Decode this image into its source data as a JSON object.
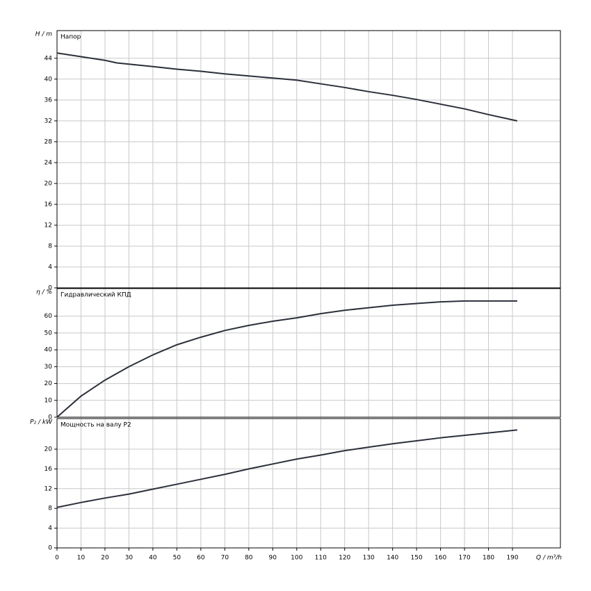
{
  "chart_data": [
    {
      "type": "line",
      "title": "Напор",
      "y_label": "H / m",
      "x": [
        0,
        10,
        20,
        25,
        40,
        50,
        60,
        70,
        80,
        90,
        100,
        110,
        120,
        130,
        140,
        150,
        160,
        170,
        180,
        192
      ],
      "values": [
        45,
        44.3,
        43.6,
        43.1,
        42.4,
        41.9,
        41.5,
        41.0,
        40.6,
        40.2,
        39.8,
        39.1,
        38.4,
        37.6,
        36.9,
        36.1,
        35.2,
        34.3,
        33.2,
        32
      ],
      "color": "#2b2f3a",
      "xlim": [
        0,
        210
      ],
      "ylim": [
        0,
        49.3
      ],
      "yticks": [
        0,
        4,
        8,
        12,
        16,
        20,
        24,
        28,
        32,
        36,
        40,
        44
      ],
      "grid": true
    },
    {
      "type": "line",
      "title": "Гидравлический КПД",
      "y_label": "η / %",
      "x": [
        0,
        10,
        20,
        30,
        40,
        50,
        60,
        70,
        80,
        90,
        100,
        110,
        120,
        130,
        140,
        150,
        160,
        170,
        180,
        192
      ],
      "values": [
        0,
        12.5,
        22,
        30,
        37,
        43,
        47.5,
        51.5,
        54.5,
        57,
        59,
        61.5,
        63.5,
        65,
        66.5,
        67.5,
        68.5,
        69,
        69,
        69
      ],
      "color": "#2b2f3a",
      "xlim": [
        0,
        210
      ],
      "ylim": [
        0,
        76.4
      ],
      "yticks": [
        0,
        10,
        20,
        30,
        40,
        50,
        60
      ],
      "grid": true
    },
    {
      "type": "line",
      "title": "Мощность на валу P2",
      "y_label": "P₂ / kW",
      "x_label": "Q / m³/h",
      "x": [
        0,
        10,
        20,
        30,
        40,
        50,
        60,
        70,
        80,
        90,
        100,
        110,
        120,
        130,
        140,
        150,
        160,
        170,
        180,
        192
      ],
      "values": [
        8.2,
        9.2,
        10.1,
        10.9,
        11.9,
        12.9,
        13.9,
        14.9,
        16,
        17,
        18,
        18.8,
        19.7,
        20.4,
        21.1,
        21.7,
        22.3,
        22.8,
        23.3,
        23.9
      ],
      "color": "#2b2f3a",
      "xlim": [
        0,
        210
      ],
      "ylim": [
        0,
        26.2
      ],
      "xticks": [
        0,
        10,
        20,
        30,
        40,
        50,
        60,
        70,
        80,
        90,
        100,
        110,
        120,
        130,
        140,
        150,
        160,
        170,
        180,
        190
      ],
      "yticks": [
        0,
        4,
        8,
        12,
        16,
        20
      ],
      "grid": true
    }
  ]
}
